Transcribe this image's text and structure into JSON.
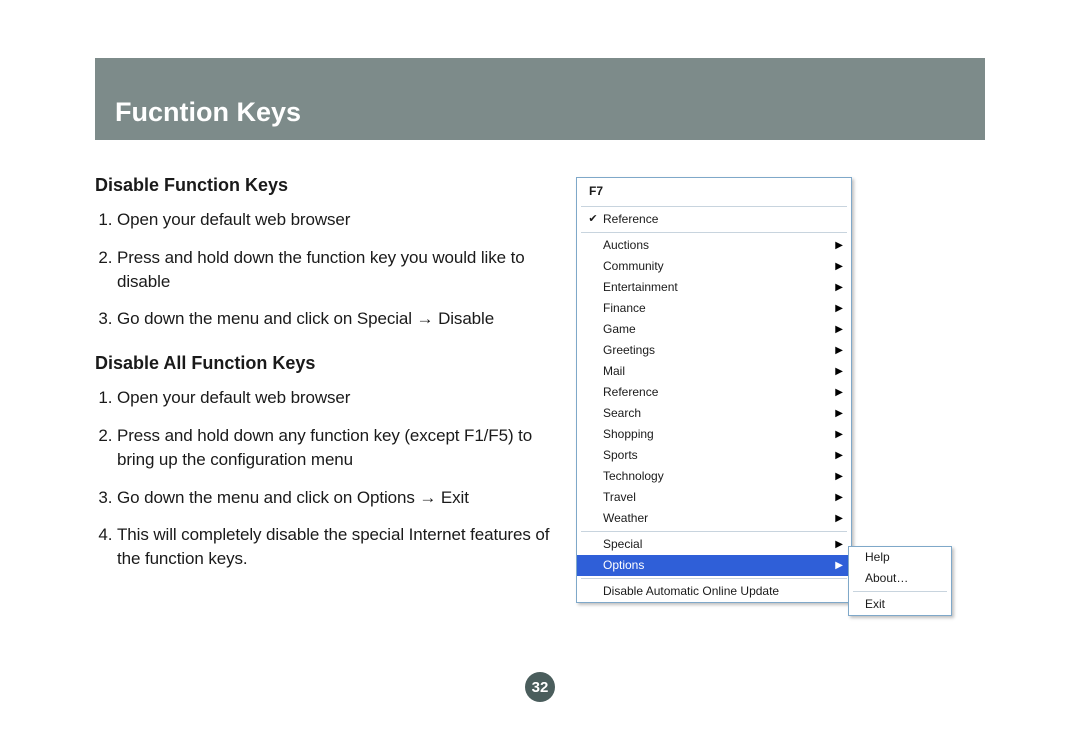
{
  "header": {
    "title": "Fucntion Keys"
  },
  "section1": {
    "heading": "Disable Function Keys",
    "steps": [
      "Open your default web browser",
      "Press and hold down the function key you would like to disable",
      "Go down the menu and click on Special → Disable"
    ]
  },
  "section2": {
    "heading": "Disable All Function Keys",
    "steps": [
      "Open your default web browser",
      "Press and hold down any function key (except F1/F5) to bring up the configuration menu",
      "Go down the menu and click on Options → Exit",
      "This will completely disable the special Internet features of the function keys."
    ]
  },
  "page_number": "32",
  "menu": {
    "title": "F7",
    "checked_item": "Reference",
    "group1": [
      "Auctions",
      "Community",
      "Entertainment",
      "Finance",
      "Game",
      "Greetings",
      "Mail",
      "Reference",
      "Search",
      "Shopping",
      "Sports",
      "Technology",
      "Travel",
      "Weather"
    ],
    "group2": [
      "Special",
      "Options"
    ],
    "selected": "Options",
    "group3": [
      "Disable Automatic Online Update"
    ],
    "submenu": [
      "Help",
      "About…",
      "Exit"
    ],
    "colors": {
      "menu_border": "#7fa8c9",
      "highlight_bg": "#2f5fd8",
      "highlight_fg": "#ffffff",
      "header_bg": "#7d8b8a",
      "page_badge_bg": "#4a5d5c"
    }
  }
}
